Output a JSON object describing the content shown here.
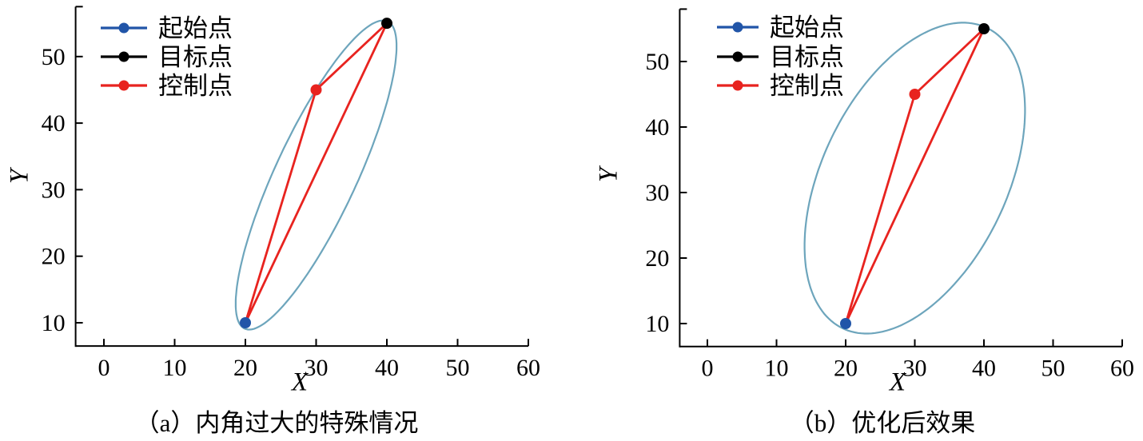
{
  "figure": {
    "background": "#ffffff",
    "axis_color": "#000000",
    "text_color": "#000000"
  },
  "chart_data": [
    {
      "type": "scatter",
      "panel": "a",
      "caption": "（a）内角过大的特殊情况",
      "xlabel": "X",
      "ylabel": "Y",
      "xlim": [
        -4,
        60
      ],
      "ylim": [
        6.5,
        57.5
      ],
      "xticks": [
        0,
        10,
        20,
        30,
        40,
        50,
        60
      ],
      "yticks": [
        10,
        20,
        30,
        40,
        50
      ],
      "grid": false,
      "legend_position": "upper-left",
      "legend": [
        {
          "label": "起始点",
          "color": "#2155a8"
        },
        {
          "label": "目标点",
          "color": "#000000"
        },
        {
          "label": "控制点",
          "color": "#e8231f"
        }
      ],
      "points": [
        {
          "name": "start",
          "label": "起始点",
          "x": 20,
          "y": 10,
          "color": "#2155a8"
        },
        {
          "name": "control",
          "label": "控制点",
          "x": 30,
          "y": 45,
          "color": "#e8231f"
        },
        {
          "name": "target",
          "label": "目标点",
          "x": 40,
          "y": 55,
          "color": "#000000"
        }
      ],
      "polyline": [
        [
          20,
          10
        ],
        [
          30,
          45
        ],
        [
          40,
          55
        ],
        [
          20,
          10
        ]
      ],
      "polyline_color": "#e8231f",
      "ellipse": {
        "cx": 30,
        "cy": 32.2,
        "a": 25.2,
        "b": 5.8,
        "angle_deg": 66.5,
        "color": "#6da5bc"
      }
    },
    {
      "type": "scatter",
      "panel": "b",
      "caption": "（b）优化后效果",
      "xlabel": "X",
      "ylabel": "Y",
      "xlim": [
        -4,
        60
      ],
      "ylim": [
        6.5,
        58
      ],
      "xticks": [
        0,
        10,
        20,
        30,
        40,
        50,
        60
      ],
      "yticks": [
        10,
        20,
        30,
        40,
        50
      ],
      "grid": false,
      "legend_position": "upper-left",
      "legend": [
        {
          "label": "起始点",
          "color": "#2155a8"
        },
        {
          "label": "目标点",
          "color": "#000000"
        },
        {
          "label": "控制点",
          "color": "#e8231f"
        }
      ],
      "points": [
        {
          "name": "start",
          "label": "起始点",
          "x": 20,
          "y": 10,
          "color": "#2155a8"
        },
        {
          "name": "control",
          "label": "控制点",
          "x": 30,
          "y": 45,
          "color": "#e8231f"
        },
        {
          "name": "target",
          "label": "目标点",
          "x": 40,
          "y": 55,
          "color": "#000000"
        }
      ],
      "polyline": [
        [
          20,
          10
        ],
        [
          30,
          45
        ],
        [
          40,
          55
        ],
        [
          20,
          10
        ]
      ],
      "polyline_color": "#e8231f",
      "ellipse": {
        "cx": 30,
        "cy": 32.2,
        "a": 25.2,
        "b": 13.5,
        "angle_deg": 66.5,
        "color": "#6da5bc"
      }
    }
  ]
}
